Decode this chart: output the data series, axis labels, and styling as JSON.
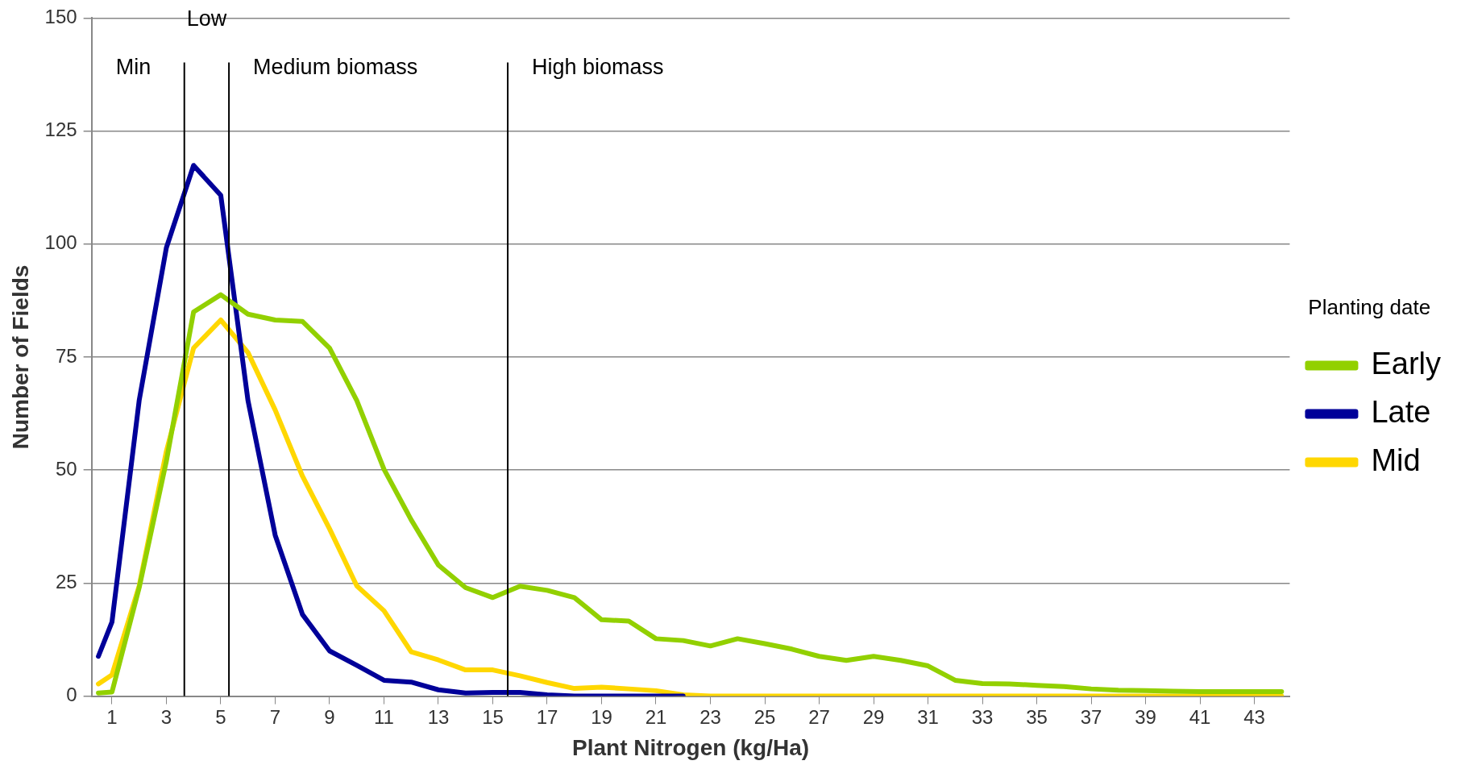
{
  "chart_data": {
    "type": "line",
    "xlabel": "Plant Nitrogen (kg/Ha)",
    "ylabel": "Number of Fields",
    "legend_title": "Planting date",
    "x": [
      0.5,
      1,
      2,
      3,
      4,
      5,
      6,
      7,
      8,
      9,
      10,
      11,
      12,
      13,
      14,
      15,
      16,
      17,
      18,
      19,
      20,
      21,
      22,
      23,
      24,
      25,
      26,
      27,
      28,
      29,
      30,
      31,
      32,
      33,
      34,
      35,
      36,
      37,
      38,
      39,
      40,
      41,
      42,
      43,
      44
    ],
    "series": [
      {
        "name": "Early",
        "color": "#92d000",
        "values": [
          0.7,
          0.9,
          24,
          52,
          85,
          88.8,
          84.5,
          83.2,
          82.9,
          77,
          65.4,
          50.2,
          39,
          29,
          24,
          21.8,
          24.3,
          23.4,
          21.8,
          16.9,
          16.6,
          12.7,
          12.3,
          11.1,
          12.7,
          11.6,
          10.4,
          8.8,
          7.9,
          8.8,
          7.9,
          6.7,
          3.5,
          2.8,
          2.7,
          2.4,
          2.1,
          1.6,
          1.3,
          1.2,
          1.1,
          1,
          1,
          1,
          1
        ]
      },
      {
        "name": "Late",
        "color": "#000099",
        "values": [
          8.8,
          16.4,
          65.4,
          99.2,
          117.4,
          110.8,
          65.4,
          35.6,
          18.1,
          10,
          6.8,
          3.5,
          3.1,
          1.4,
          0.7,
          0.8,
          0.8,
          0.3,
          0,
          0,
          0,
          0,
          0,
          null,
          null,
          null,
          null,
          null,
          null,
          null,
          null,
          null,
          null,
          null,
          null,
          null,
          null,
          null,
          null,
          null,
          null,
          null,
          null,
          null,
          null
        ]
      },
      {
        "name": "Mid",
        "color": "#ffd700",
        "values": [
          2.7,
          4.7,
          24.4,
          54.2,
          77,
          83.2,
          76,
          63.3,
          48.7,
          37,
          24.4,
          18.9,
          9.8,
          8,
          5.8,
          5.8,
          4.5,
          3,
          1.7,
          2,
          1.6,
          1.2,
          0.3,
          0,
          0,
          0,
          0,
          0,
          0,
          0,
          0,
          0,
          0,
          0,
          0,
          0,
          0,
          0,
          0,
          0,
          0,
          0,
          0,
          0,
          0
        ]
      }
    ],
    "xlim": [
      0.25,
      44.3
    ],
    "xticks": [
      1,
      3,
      5,
      7,
      9,
      11,
      13,
      15,
      17,
      19,
      21,
      23,
      25,
      27,
      29,
      31,
      33,
      35,
      37,
      39,
      41,
      43
    ],
    "ylim": [
      0,
      150
    ],
    "yticks": [
      0,
      25,
      50,
      75,
      100,
      125,
      150
    ],
    "ref_lines": [
      {
        "axis": "x",
        "value": 3.66,
        "color": "#000000"
      },
      {
        "axis": "x",
        "value": 5.3,
        "color": "#000000"
      },
      {
        "axis": "x",
        "value": 15.55,
        "color": "#000000"
      }
    ],
    "annotations": [
      "Min",
      "Low",
      "Medium biomass",
      "High biomass"
    ],
    "grid": "y",
    "legend": "right",
    "marker": "none",
    "line_style": "solid"
  }
}
